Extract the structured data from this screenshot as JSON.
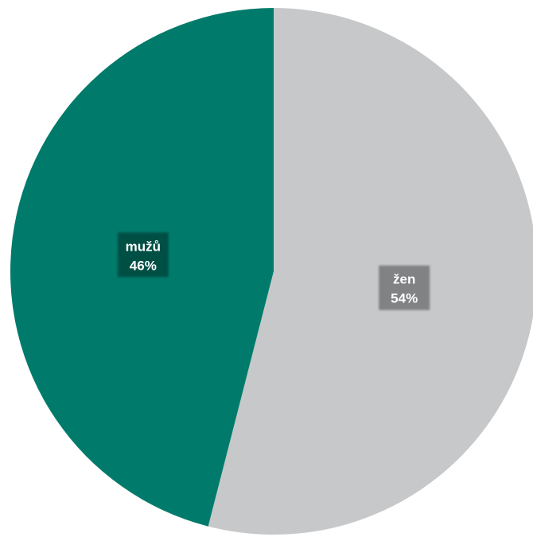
{
  "chart_data": {
    "type": "pie",
    "start_angle_deg": 0,
    "direction": "clockwise",
    "slices": [
      {
        "name": "žen",
        "value": 54,
        "value_label": "54%",
        "color": "#c7c8ca",
        "label_bg": "#808284"
      },
      {
        "name": "mužů",
        "value": 46,
        "value_label": "46%",
        "color": "#007b6b",
        "label_bg": "#004f44"
      }
    ]
  }
}
